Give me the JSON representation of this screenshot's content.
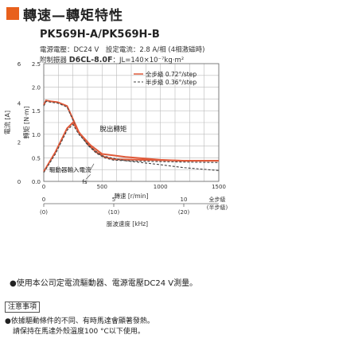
{
  "header": {
    "title": "轉速—轉矩特性",
    "model": "PK569H-A/PK569H-B",
    "conditions_line1": "電源電壓：DC24 V　設定電流：2.8 A/相 (4相激磁時)",
    "conditions_line2_prefix": "附制振器",
    "conditions_line2_model": "D6CL-8.0F",
    "conditions_line2_suffix": "：JL=140×10⁻⁷kg·m²"
  },
  "colors": {
    "accent": "#e8601c",
    "full_step": "#e05a3a",
    "half_step": "#444444",
    "grid": "#bbbbbb"
  },
  "chart_data": {
    "type": "line",
    "x_unit_label": "轉速 [r/min]",
    "xlim": [
      0,
      1500
    ],
    "x_ticks": [
      0,
      500,
      1000,
      1500
    ],
    "torque_axis": {
      "label": "轉矩 [N·m]",
      "ylim": [
        0,
        2.5
      ],
      "ticks": [
        0,
        0.5,
        1.0,
        1.5,
        2.0,
        2.5
      ]
    },
    "current_axis": {
      "label": "電流 [A]",
      "ylim": [
        0,
        6
      ],
      "ticks": [
        0,
        2,
        4,
        6
      ]
    },
    "legend": [
      {
        "label": "全步級 0.72°/step",
        "style": "solid"
      },
      {
        "label": "半步級 0.36°/step",
        "style": "dashed"
      }
    ],
    "legend_placement": "top-right",
    "annotations": {
      "pullout": "脫出轉矩",
      "current": "驅動器輸入電流",
      "fs": "fs"
    },
    "series": [
      {
        "name": "全步級 0.72°/step",
        "kind": "torque",
        "x": [
          0,
          20,
          60,
          120,
          200,
          300,
          380,
          450,
          520,
          600,
          800,
          1000,
          1200,
          1500
        ],
        "y": [
          1.62,
          1.72,
          1.7,
          1.68,
          1.6,
          1.05,
          0.78,
          0.62,
          0.52,
          0.47,
          0.46,
          0.45,
          0.44,
          0.44
        ]
      },
      {
        "name": "半步級 0.36°/step",
        "kind": "torque",
        "x": [
          0,
          20,
          60,
          120,
          200,
          300,
          380,
          450,
          520,
          600,
          800,
          1000,
          1200,
          1500
        ],
        "y": [
          1.6,
          1.7,
          1.68,
          1.66,
          1.58,
          1.02,
          0.76,
          0.6,
          0.5,
          0.45,
          0.43,
          0.42,
          0.41,
          0.4
        ]
      },
      {
        "name": "全步級 0.72°/step",
        "kind": "current",
        "x": [
          0,
          100,
          200,
          250,
          300,
          400,
          500,
          700,
          1000,
          1200,
          1500
        ],
        "y": [
          0.5,
          1.5,
          2.7,
          3.0,
          2.5,
          1.85,
          1.4,
          1.25,
          1.1,
          1.05,
          1.05
        ]
      },
      {
        "name": "半步級 0.36°/step",
        "kind": "current",
        "x": [
          0,
          100,
          200,
          250,
          300,
          400,
          500,
          700,
          1000,
          1200,
          1500
        ],
        "y": [
          0.45,
          1.4,
          2.6,
          2.9,
          2.4,
          1.75,
          1.3,
          1.05,
          0.85,
          0.7,
          0.55
        ]
      }
    ],
    "pulse_axis": {
      "label": "脈波速度 [kHz]",
      "ticks": [
        {
          "full": "0",
          "half": "(0)",
          "rpm": 0
        },
        {
          "full": "5",
          "half": "(10)",
          "rpm": 600
        },
        {
          "full": "10",
          "half": "(20)",
          "rpm": 1200
        }
      ],
      "end_label_1": "全步級",
      "end_label_2": "(半步級)"
    }
  },
  "notes": {
    "main": "●使用本公司定電流驅動器、電源電壓DC24 V測量。",
    "caution_title": "注意事項",
    "caution_1": "●依據驅動條件的不同、有時馬達會顯著發熱。",
    "caution_2": "請保持在馬達外殼溫度100 °C以下使用。"
  }
}
